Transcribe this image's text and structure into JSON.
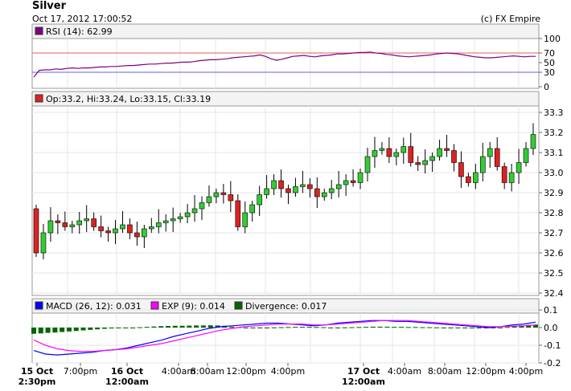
{
  "header": {
    "title": "Silver",
    "datetime": "Oct 17, 2012 17:00:52",
    "credit": "(c) FX Empire"
  },
  "rsi": {
    "legend": "RSI (14): 62.99",
    "color": "#800080",
    "yticks": [
      "100",
      "70",
      "50",
      "30",
      "0"
    ],
    "levels": {
      "upper": 70,
      "lower": 30,
      "upper_color": "#e06060",
      "lower_color": "#6060e0"
    }
  },
  "price": {
    "legend": "Op:33.2, Hi:33.24, Lo:33.15, Cl:33.19",
    "yticks": [
      "33.3",
      "33.2",
      "33.1",
      "33.0",
      "32.9",
      "32.8",
      "32.7",
      "32.6",
      "32.5",
      "32.4"
    ],
    "up_color": "#33cc33",
    "down_color": "#dd2222"
  },
  "macd": {
    "legend_macd": "MACD (26, 12): 0.031",
    "legend_exp": "EXP (9): 0.014",
    "legend_div": "Divergence: 0.017",
    "macd_color": "#0000ff",
    "exp_color": "#ff00ff",
    "div_color": "#006600",
    "yticks": [
      "0.1",
      "0.0",
      "-0.1",
      "-0.2"
    ]
  },
  "xaxis": {
    "labels": [
      {
        "line1": "15 Oct",
        "line2": "2:30pm",
        "bold": true
      },
      {
        "line1": "7:00pm",
        "line2": "",
        "bold": false
      },
      {
        "line1": "16 Oct",
        "line2": "12:00am",
        "bold": true
      },
      {
        "line1": "4:00am",
        "line2": "",
        "bold": false
      },
      {
        "line1": "8:00am",
        "line2": "",
        "bold": false
      },
      {
        "line1": "12:00pm",
        "line2": "",
        "bold": false
      },
      {
        "line1": "4:00pm",
        "line2": "",
        "bold": false
      },
      {
        "line1": "17 Oct",
        "line2": "12:00am",
        "bold": true
      },
      {
        "line1": "4:00am",
        "line2": "",
        "bold": false
      },
      {
        "line1": "8:00am",
        "line2": "",
        "bold": false
      },
      {
        "line1": "12:00pm",
        "line2": "",
        "bold": false
      },
      {
        "line1": "4:00pm",
        "line2": "",
        "bold": false
      }
    ]
  },
  "chart_data": [
    {
      "type": "line",
      "name": "RSI (14)",
      "ylim": [
        0,
        100
      ],
      "values": [
        20,
        34,
        35,
        35,
        37,
        36,
        38,
        39,
        38,
        39,
        39,
        40,
        41,
        41,
        42,
        42,
        43,
        44,
        44,
        45,
        46,
        47,
        47,
        48,
        49,
        49,
        50,
        51,
        51,
        52,
        54,
        55,
        56,
        56,
        57,
        58,
        60,
        61,
        62,
        63,
        64,
        66,
        63,
        58,
        55,
        57,
        60,
        63,
        64,
        65,
        63,
        62,
        64,
        65,
        66,
        68,
        68,
        69,
        70,
        71,
        71,
        72,
        70,
        69,
        67,
        66,
        64,
        63,
        62,
        63,
        64,
        65,
        66,
        68,
        69,
        70,
        69,
        68,
        66,
        64,
        62,
        61,
        60,
        60,
        61,
        62,
        63,
        64,
        63,
        62,
        63,
        62.99
      ]
    },
    {
      "type": "line",
      "name": "Silver price",
      "ylim": [
        32.4,
        33.3
      ],
      "values": [
        32.6,
        32.7,
        32.76,
        32.75,
        32.73,
        32.74,
        32.76,
        32.77,
        32.73,
        32.71,
        32.7,
        32.72,
        32.74,
        32.7,
        32.68,
        32.72,
        32.73,
        32.75,
        32.76,
        32.77,
        32.78,
        32.8,
        32.82,
        32.85,
        32.88,
        32.9,
        32.89,
        32.86,
        32.73,
        32.8,
        32.84,
        32.89,
        32.92,
        32.96,
        32.92,
        32.9,
        32.93,
        32.94,
        32.92,
        32.88,
        32.9,
        32.92,
        32.94,
        32.96,
        32.95,
        33.0,
        33.08,
        33.11,
        33.12,
        33.08,
        33.1,
        33.13,
        33.05,
        33.04,
        33.06,
        33.08,
        33.12,
        33.11,
        33.05,
        32.98,
        32.95,
        33.0,
        33.08,
        33.12,
        33.03,
        32.95,
        33.0,
        33.05,
        33.12,
        33.19
      ]
    },
    {
      "type": "line",
      "name": "MACD (26, 12)",
      "ylim": [
        -0.2,
        0.1
      ],
      "values": [
        -0.13,
        -0.15,
        -0.155,
        -0.15,
        -0.145,
        -0.14,
        -0.13,
        -0.125,
        -0.115,
        -0.1,
        -0.085,
        -0.07,
        -0.05,
        -0.035,
        -0.02,
        -0.005,
        0.005,
        0.01,
        0.015,
        0.02,
        0.025,
        0.025,
        0.02,
        0.015,
        0.01,
        0.015,
        0.025,
        0.03,
        0.035,
        0.04,
        0.04,
        0.035,
        0.035,
        0.03,
        0.025,
        0.02,
        0.015,
        0.01,
        0.005,
        0.0,
        0.005,
        0.015,
        0.02,
        0.031
      ]
    },
    {
      "type": "line",
      "name": "EXP (9)",
      "ylim": [
        -0.2,
        0.1
      ],
      "values": [
        -0.07,
        -0.1,
        -0.12,
        -0.13,
        -0.135,
        -0.135,
        -0.13,
        -0.125,
        -0.12,
        -0.11,
        -0.1,
        -0.09,
        -0.075,
        -0.06,
        -0.045,
        -0.03,
        -0.015,
        -0.005,
        0.005,
        0.01,
        0.015,
        0.02,
        0.02,
        0.02,
        0.015,
        0.015,
        0.02,
        0.025,
        0.03,
        0.035,
        0.04,
        0.04,
        0.04,
        0.035,
        0.03,
        0.025,
        0.02,
        0.015,
        0.01,
        0.005,
        0.005,
        0.008,
        0.01,
        0.014
      ]
    },
    {
      "type": "bar",
      "name": "Divergence",
      "ylim": [
        -0.2,
        0.1
      ],
      "values": [
        -0.035,
        -0.033,
        -0.03,
        -0.028,
        -0.025,
        -0.022,
        -0.019,
        -0.016,
        -0.013,
        -0.01,
        -0.007,
        -0.005,
        -0.003,
        -0.001,
        0.0,
        0.002,
        0.004,
        0.006,
        0.008,
        0.009,
        0.01,
        0.01,
        0.011,
        0.012,
        0.012,
        0.013,
        0.012,
        0.01,
        0.005,
        0.002,
        0.0,
        -0.001,
        -0.001,
        0.0,
        0.001,
        0.002,
        0.003,
        0.004,
        0.004,
        0.004,
        0.003,
        0.002,
        0.0,
        0.0,
        0.001,
        0.002,
        0.003,
        0.004,
        0.005,
        0.005,
        0.005,
        0.004,
        0.004,
        0.003,
        0.003,
        0.002,
        0.002,
        0.001,
        0.0,
        -0.002,
        -0.003,
        -0.004,
        -0.004,
        -0.003,
        -0.002,
        -0.001,
        0.0,
        0.003,
        0.008,
        0.012,
        0.015,
        0.017
      ]
    }
  ]
}
